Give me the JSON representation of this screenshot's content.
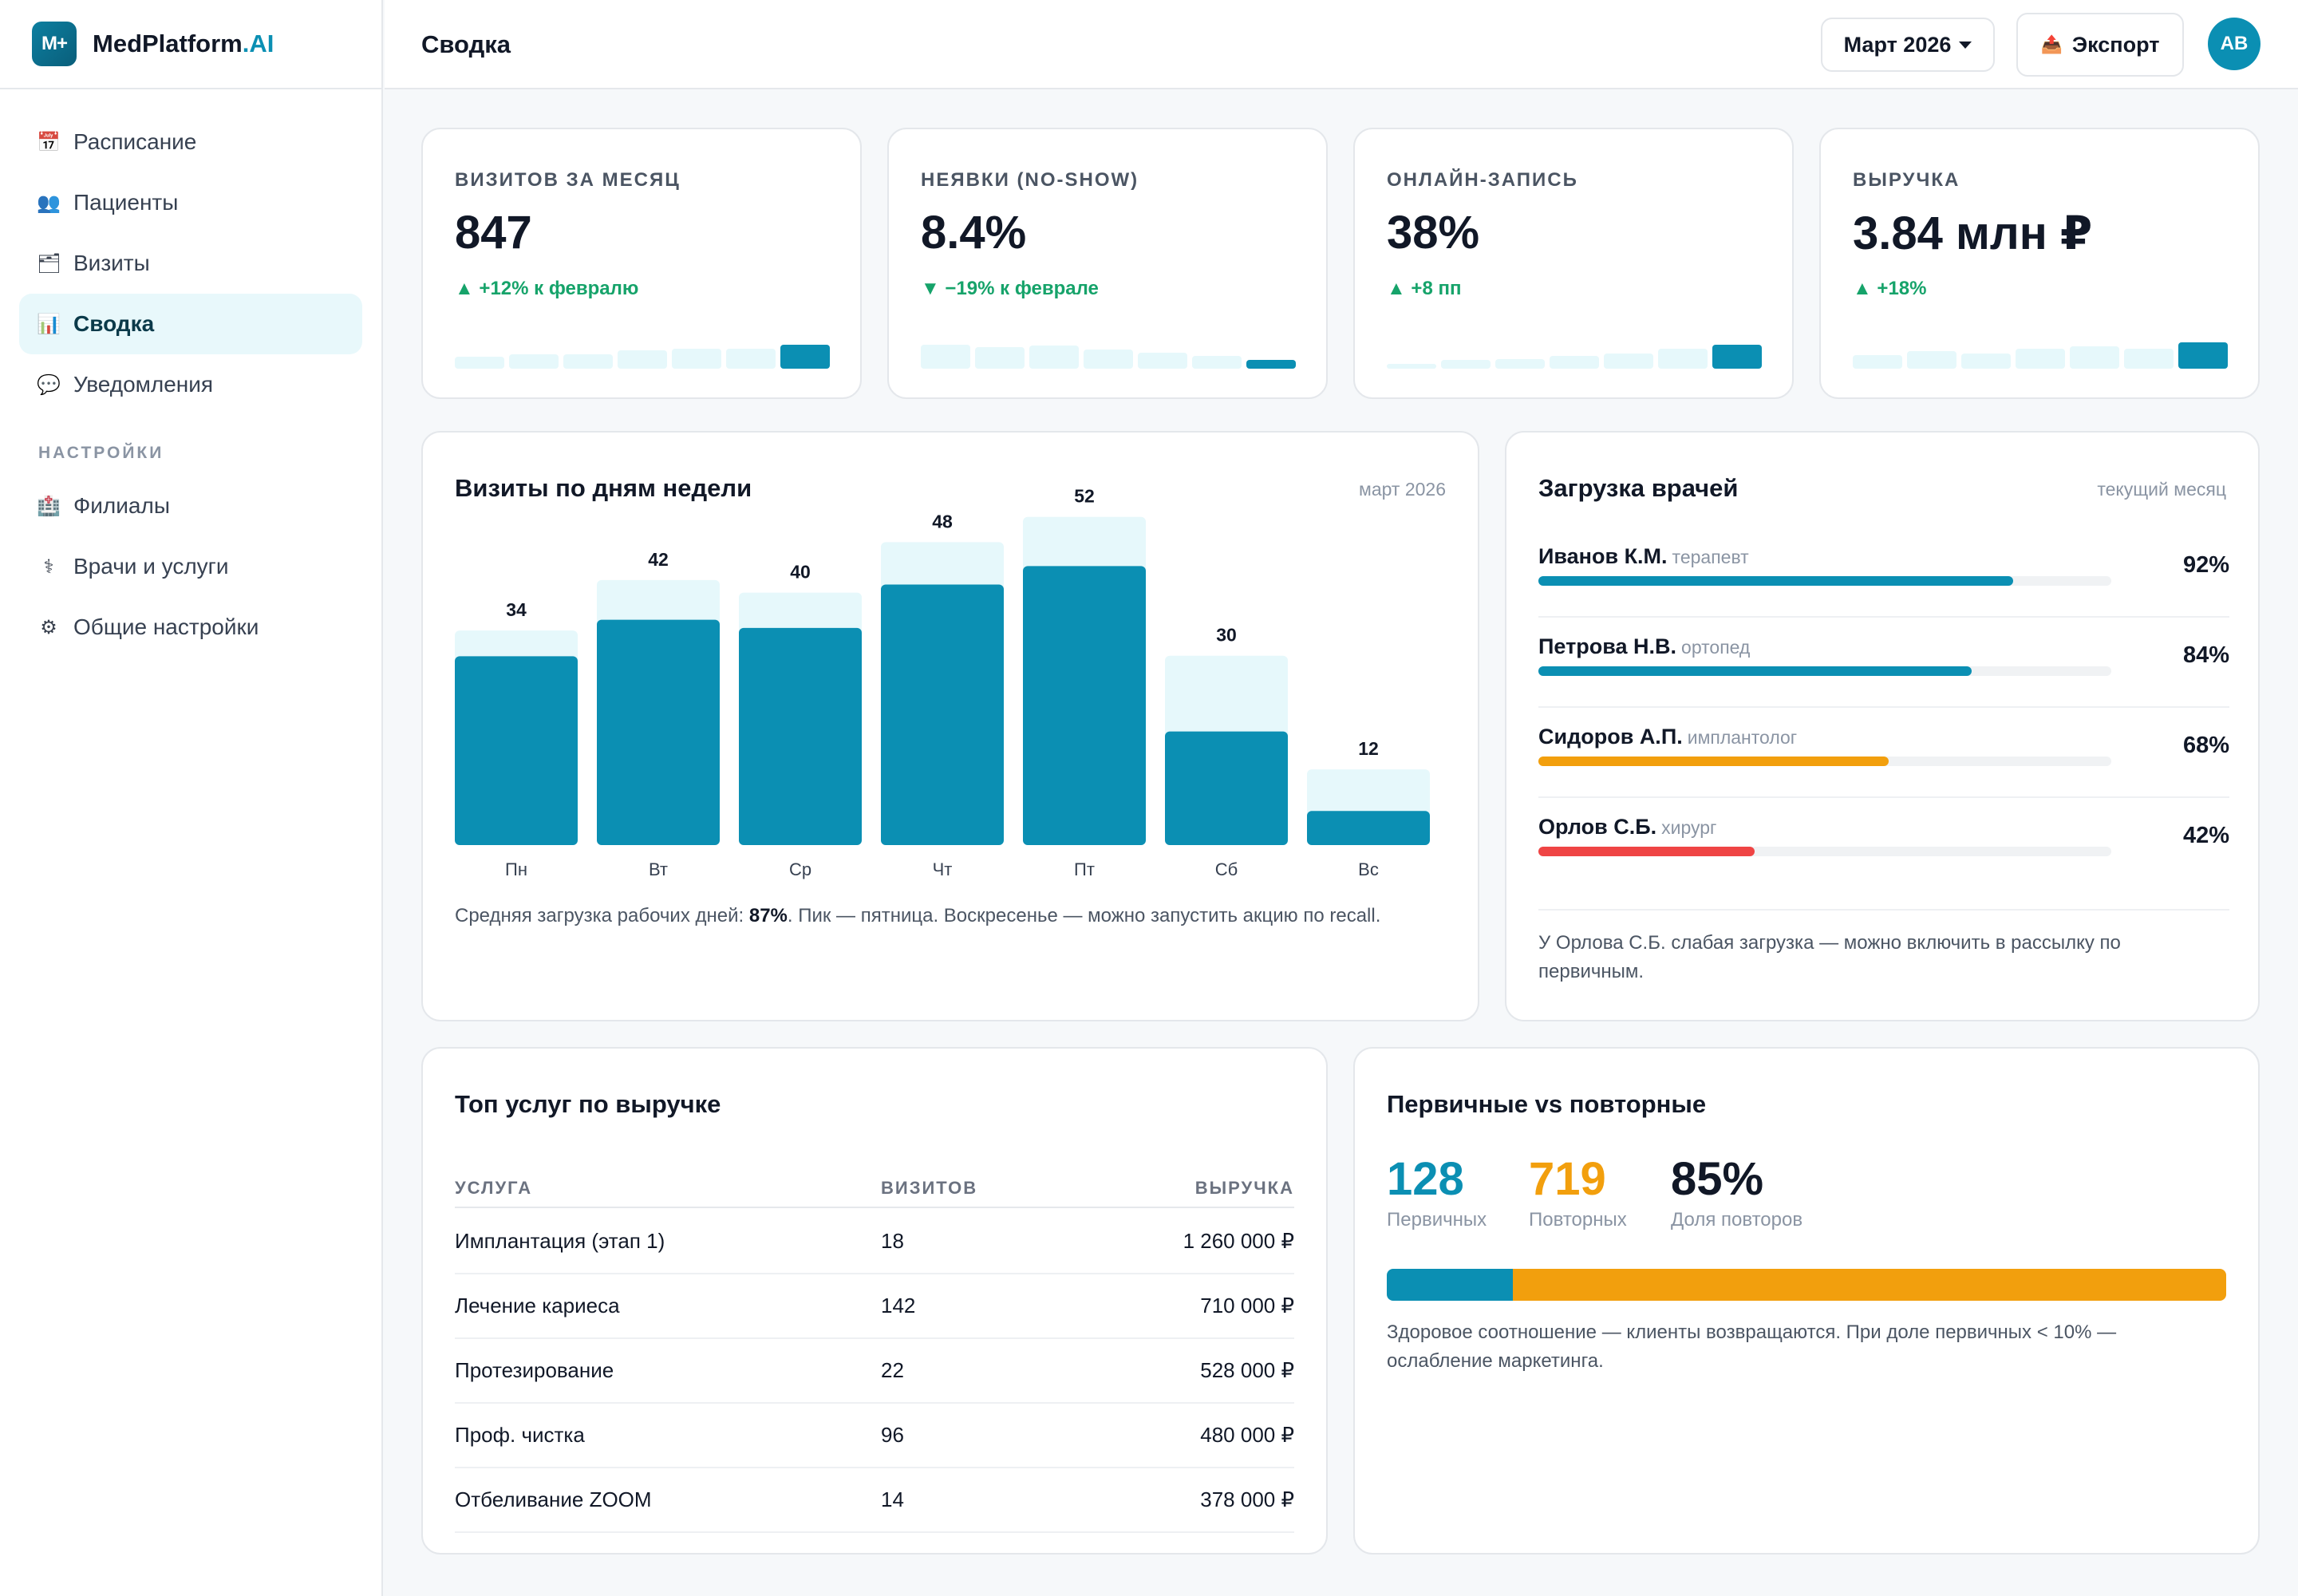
{
  "brand": {
    "logo": "M+",
    "name": "MedPlatform",
    "suffix": ".AI"
  },
  "nav": {
    "items": [
      {
        "icon": "📅",
        "label": "Расписание",
        "active": false
      },
      {
        "icon": "👥",
        "label": "Пациенты",
        "active": false
      },
      {
        "icon": "🗂",
        "label": "Визиты",
        "active": false
      },
      {
        "icon": "📊",
        "label": "Сводка",
        "active": true
      },
      {
        "icon": "💬",
        "label": "Уведомления",
        "active": false
      }
    ],
    "settings_section": "НАСТРОЙКИ",
    "settings_items": [
      {
        "icon": "🏥",
        "label": "Филиалы"
      },
      {
        "icon": "⚕",
        "label": "Врачи и услуги"
      },
      {
        "icon": "⚙",
        "label": "Общие настройки"
      }
    ]
  },
  "header": {
    "title": "Сводка",
    "period": "Март 2026",
    "export_icon": "📤",
    "export_label": "Экспорт",
    "avatar": "АВ"
  },
  "colors": {
    "accent": "#0b8fb3",
    "light": "#e6f8fb",
    "orange": "#f29f0d",
    "red": "#ef4444",
    "green": "#16a36a"
  },
  "kpis": [
    {
      "label": "ВИЗИТОВ ЗА МЕСЯЦ",
      "value": "847",
      "delta": "▲ +12% к февралю",
      "trend": "up",
      "spark": [
        0.25,
        0.3,
        0.3,
        0.38,
        0.42,
        0.42,
        0.5
      ]
    },
    {
      "label": "НЕЯВКИ (NO-SHOW)",
      "value": "8.4%",
      "delta": "▼ −19% к феврале",
      "trend": "down",
      "spark": [
        0.5,
        0.45,
        0.48,
        0.4,
        0.33,
        0.27,
        0.19
      ]
    },
    {
      "label": "ОНЛАЙН-ЗАПИСЬ",
      "value": "38%",
      "delta": "▲ +8 пп",
      "trend": "up",
      "spark": [
        0.1,
        0.18,
        0.2,
        0.26,
        0.32,
        0.42,
        0.5
      ]
    },
    {
      "label": "ВЫРУЧКА",
      "value": "3.84 млн ₽",
      "delta": "▲ +18%",
      "trend": "up",
      "spark": [
        0.28,
        0.36,
        0.32,
        0.42,
        0.46,
        0.42,
        0.55
      ]
    }
  ],
  "visits_card": {
    "title": "Визиты по дням недели",
    "meta": "март 2026",
    "note_before": "Средняя загрузка рабочих дней: ",
    "note_bold": "87%",
    "note_after": ". Пик — пятница. Воскресенье — можно запустить акцию по recall."
  },
  "chart_data": {
    "type": "bar",
    "categories": [
      "Пн",
      "Вт",
      "Ср",
      "Чт",
      "Пт",
      "Сб",
      "Вс"
    ],
    "values": [
      34,
      42,
      40,
      48,
      52,
      30,
      12
    ],
    "fill_share": [
      0.88,
      0.85,
      0.86,
      0.86,
      0.85,
      0.6,
      0.45
    ],
    "xlabel": "",
    "ylabel": ""
  },
  "doctors_card": {
    "title": "Загрузка врачей",
    "meta": "текущий месяц",
    "doctors": [
      {
        "name": "Иванов К.М.",
        "spec": "терапевт",
        "pct": "92%",
        "load": 0.92,
        "color": "#0b8fb3"
      },
      {
        "name": "Петрова Н.В.",
        "spec": "ортопед",
        "pct": "84%",
        "load": 0.84,
        "color": "#0b8fb3"
      },
      {
        "name": "Сидоров А.П.",
        "spec": "имплантолог",
        "pct": "68%",
        "load": 0.68,
        "color": "#f29f0d"
      },
      {
        "name": "Орлов С.Б.",
        "spec": "хирург",
        "pct": "42%",
        "load": 0.42,
        "color": "#ef4444"
      }
    ],
    "note": "У Орлова С.Б. слабая загрузка — можно включить в рассылку по первичным."
  },
  "services_card": {
    "title": "Топ услуг по выручке",
    "columns": [
      "УСЛУГА",
      "ВИЗИТОВ",
      "ВЫРУЧКА"
    ],
    "rows": [
      {
        "service": "Имплантация (этап 1)",
        "visits": "18",
        "revenue": "1 260 000 ₽"
      },
      {
        "service": "Лечение кариеса",
        "visits": "142",
        "revenue": "710 000 ₽"
      },
      {
        "service": "Протезирование",
        "visits": "22",
        "revenue": "528 000 ₽"
      },
      {
        "service": "Проф. чистка",
        "visits": "96",
        "revenue": "480 000 ₽"
      },
      {
        "service": "Отбеливание ZOOM",
        "visits": "14",
        "revenue": "378 000 ₽"
      }
    ]
  },
  "ratio_card": {
    "title": "Первичные vs повторные",
    "stats": [
      {
        "value": "128",
        "label": "Первичных",
        "color": "#0b8fb3"
      },
      {
        "value": "719",
        "label": "Повторных",
        "color": "#f29f0d"
      },
      {
        "value": "85%",
        "label": "Доля повторов",
        "color": "#111827"
      }
    ],
    "primary_share": 0.15,
    "note": "Здоровое соотношение — клиенты возвращаются. При доле первичных < 10% — ослабление маркетинга."
  }
}
